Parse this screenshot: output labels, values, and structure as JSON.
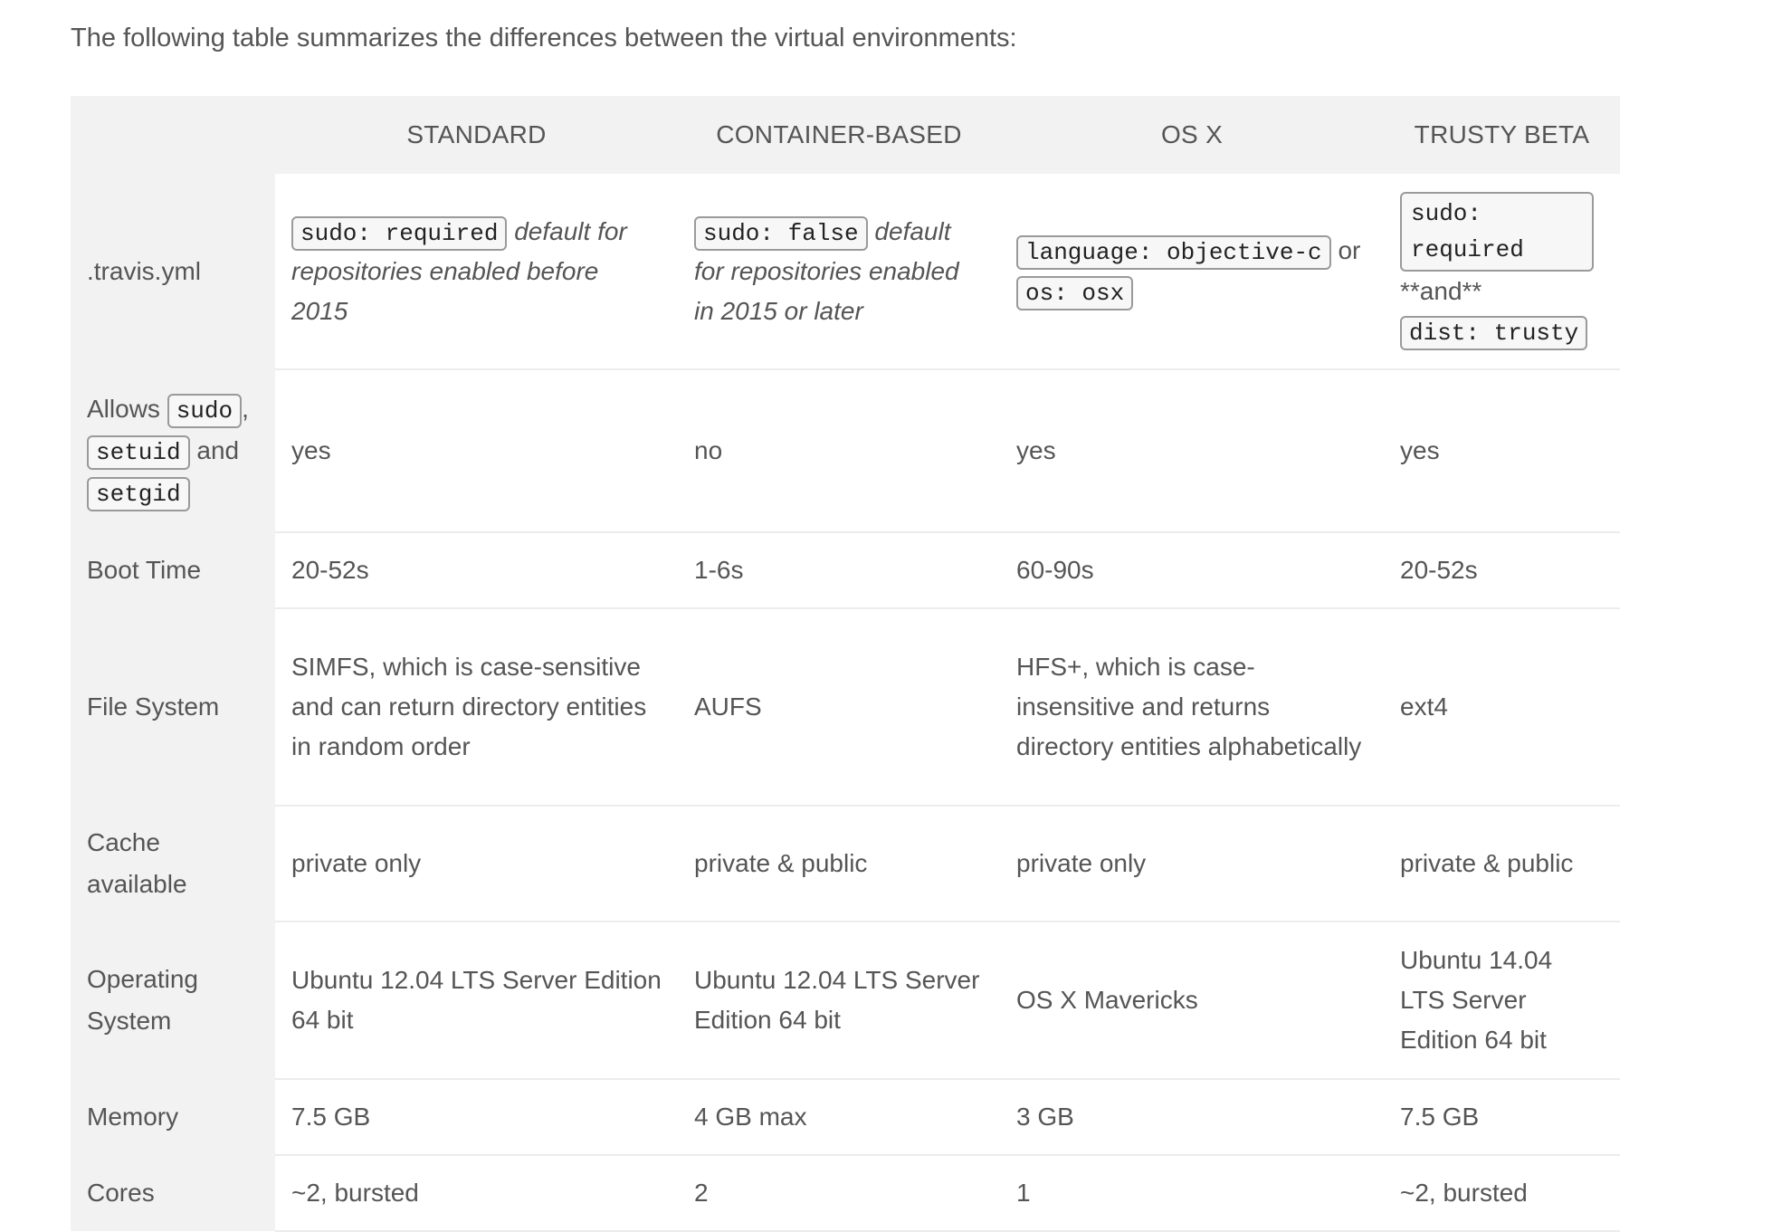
{
  "intro": "The following table summarizes the differences between the virtual environments:",
  "table": {
    "headers": [
      "",
      "STANDARD",
      "CONTAINER-BASED",
      "OS X",
      "TRUSTY BETA"
    ],
    "travis": {
      "label": ".travis.yml",
      "standard": {
        "code": "sudo: required",
        "note": "default for repositories enabled before 2015"
      },
      "container": {
        "code": "sudo: false",
        "note": "default for repositories enabled in 2015 or later"
      },
      "osx": {
        "code1": "language: objective-c",
        "or": "or",
        "code2": "os: osx"
      },
      "trusty": {
        "code1": "sudo: required",
        "and": "**and**",
        "code2": "dist: trusty"
      }
    },
    "allows": {
      "label_prefix": "Allows",
      "code_sudo": "sudo",
      "comma": ",",
      "code_setuid": "setuid",
      "and": "and",
      "code_setgid": "setgid",
      "values": [
        "yes",
        "no",
        "yes",
        "yes"
      ]
    },
    "rows": {
      "boot": {
        "label": "Boot Time",
        "values": [
          "20-52s",
          "1-6s",
          "60-90s",
          "20-52s"
        ]
      },
      "fs": {
        "label": "File System",
        "values": [
          "SIMFS, which is case-sensitive and can return directory entities in random order",
          "AUFS",
          "HFS+, which is case-insensitive and returns directory entities alphabetically",
          "ext4"
        ]
      },
      "cache": {
        "label": "Cache available",
        "values": [
          "private only",
          "private & public",
          "private only",
          "private & public"
        ]
      },
      "os": {
        "label": "Operating System",
        "values": [
          "Ubuntu 12.04 LTS Server Edition 64 bit",
          "Ubuntu 12.04 LTS Server Edition 64 bit",
          "OS X Mavericks",
          "Ubuntu 14.04 LTS Server Edition 64 bit"
        ]
      },
      "memory": {
        "label": "Memory",
        "values": [
          "7.5 GB",
          "4 GB max",
          "3 GB",
          "7.5 GB"
        ]
      },
      "cores": {
        "label": "Cores",
        "values": [
          "~2, bursted",
          "2",
          "1",
          "~2, bursted"
        ]
      }
    }
  }
}
